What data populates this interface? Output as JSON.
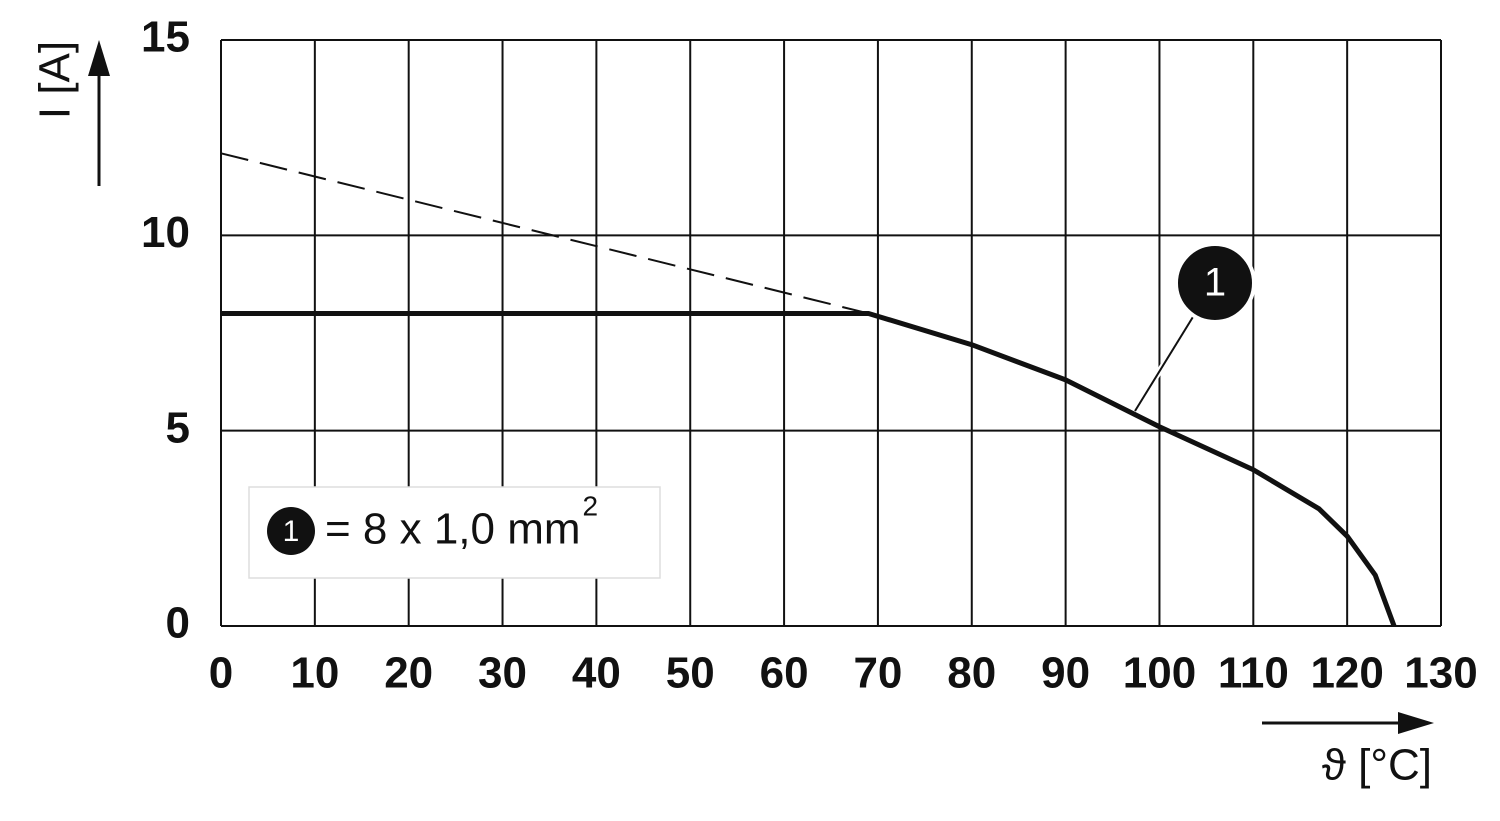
{
  "chart_data": {
    "type": "line",
    "x_label": "ϑ [°C]",
    "y_label": "I [A]",
    "xlim": [
      0,
      130
    ],
    "xticks": [
      0,
      10,
      20,
      30,
      40,
      50,
      60,
      70,
      80,
      90,
      100,
      110,
      120,
      130
    ],
    "ylim": [
      0,
      15
    ],
    "yticks": [
      0,
      5,
      10,
      15
    ],
    "grid": true,
    "series": [
      {
        "name": "1",
        "color": "#111111",
        "x": [
          0,
          69,
          80,
          90,
          100,
          110,
          117,
          120,
          123,
          125
        ],
        "values": [
          8,
          8,
          7.2,
          6.3,
          5.1,
          4.0,
          3.0,
          2.3,
          1.3,
          0
        ]
      },
      {
        "color": "#111111",
        "dashed": true,
        "x": [
          0,
          69
        ],
        "values": [
          12.1,
          8
        ]
      }
    ],
    "legend": {
      "text": "= 8 x 1,0 mm",
      "superscript": "2"
    }
  }
}
